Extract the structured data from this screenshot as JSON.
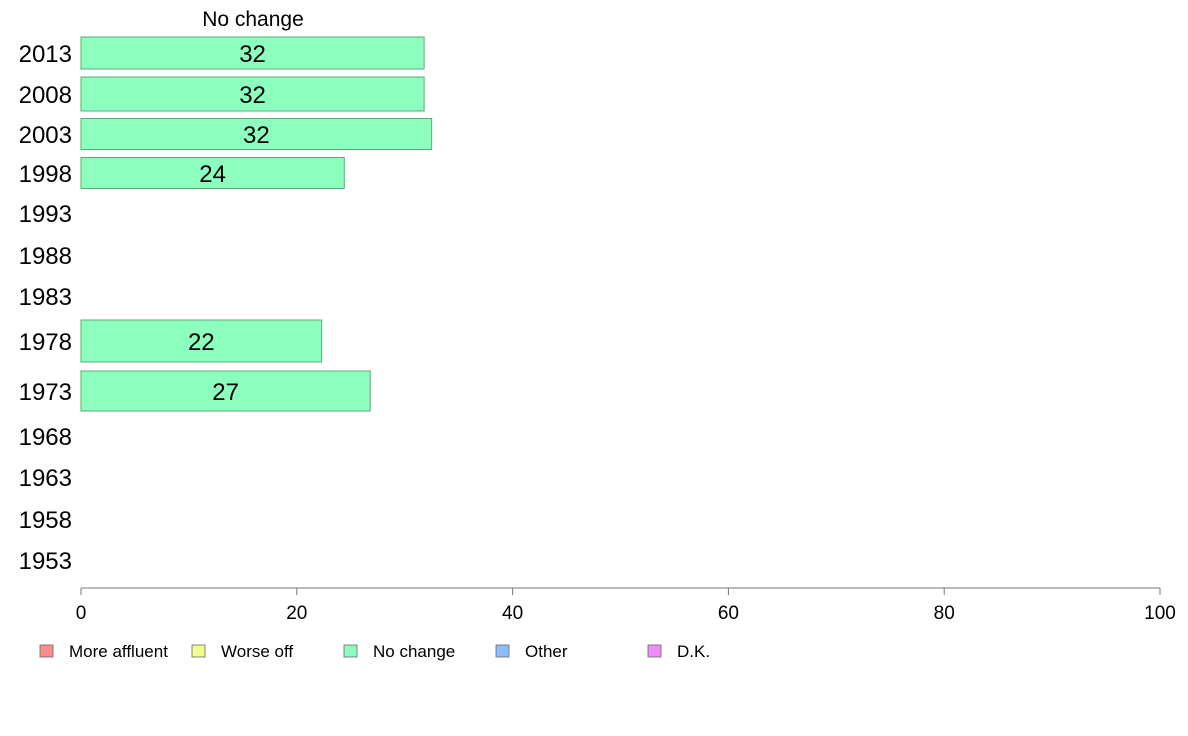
{
  "chart_data": {
    "type": "bar",
    "orientation": "horizontal",
    "panel_title": "No change",
    "categories": [
      "2013",
      "2008",
      "2003",
      "1998",
      "1993",
      "1988",
      "1983",
      "1978",
      "1973",
      "1968",
      "1963",
      "1958",
      "1953"
    ],
    "series": [
      {
        "name": "No change",
        "color": "#8cffbe",
        "values": [
          32,
          32,
          32,
          24,
          null,
          null,
          null,
          22,
          27,
          null,
          null,
          null,
          null
        ],
        "bar_values": [
          31.8,
          31.8,
          32.5,
          24.4,
          null,
          null,
          null,
          22.3,
          26.8,
          null,
          null,
          null,
          null
        ]
      }
    ],
    "xlim": [
      0,
      100
    ],
    "xticks": [
      0,
      20,
      40,
      60,
      80,
      100
    ],
    "legend": {
      "placement": "bottom-left",
      "entries": [
        {
          "label": "More affluent",
          "color": "#ff8c8c"
        },
        {
          "label": "Worse off",
          "color": "#f0ff8c"
        },
        {
          "label": "No change",
          "color": "#8cffbe"
        },
        {
          "label": "Other",
          "color": "#8cbeff"
        },
        {
          "label": "D.K.",
          "color": "#f08cff"
        }
      ]
    },
    "grid": false
  }
}
